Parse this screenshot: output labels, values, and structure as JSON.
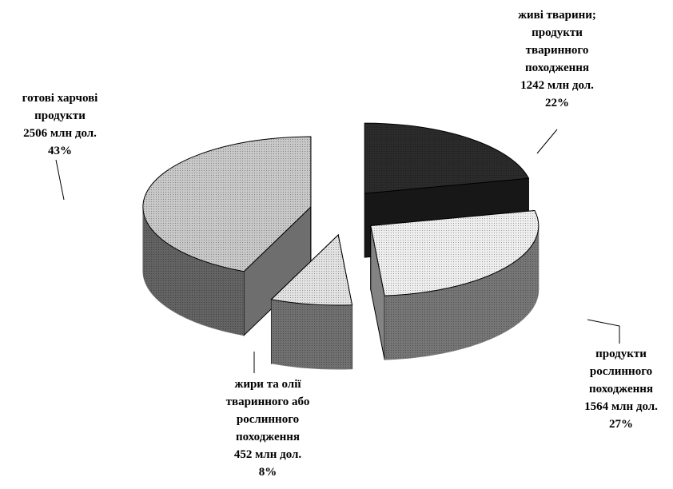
{
  "chart_data": {
    "type": "pie",
    "categories": [
      "живі тварини;\nпродукти\nтваринного\nпоходження",
      "продукти\nрослинного\nпоходження",
      "жири та олії\nтваринного або\nрослинного\nпоходження",
      "готові харчові\nпродукти"
    ],
    "values": [
      1242,
      1564,
      452,
      2506
    ],
    "value_labels": [
      "1242 млн дол.",
      "1564 млн дол.",
      "452 млн дол.",
      "2506 млн дол."
    ],
    "percents": [
      22,
      27,
      8,
      43
    ],
    "percent_labels": [
      "22%",
      "27%",
      "8%",
      "43%"
    ],
    "colors": [
      "#2b2b2b",
      "#eeeeee",
      "#e2e2e2",
      "#c8c8c8"
    ]
  }
}
